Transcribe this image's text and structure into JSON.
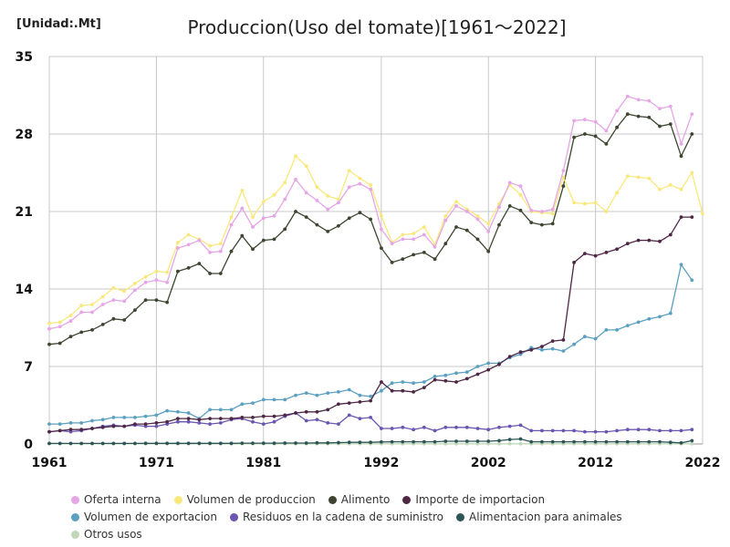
{
  "chart_data": {
    "type": "line",
    "title": "Produccion(Uso del tomate)[1961〜2022]",
    "unit_label": "[Unidad:.Mt]",
    "xlim": [
      1961,
      2022
    ],
    "ylim": [
      0,
      35
    ],
    "x_ticks": [
      1961,
      1971,
      1981,
      1992,
      2002,
      2012,
      2022
    ],
    "y_ticks": [
      0,
      7,
      14,
      21,
      28,
      35
    ],
    "x": [
      1961,
      1962,
      1963,
      1964,
      1965,
      1966,
      1967,
      1968,
      1969,
      1970,
      1971,
      1972,
      1973,
      1974,
      1975,
      1976,
      1977,
      1978,
      1979,
      1980,
      1981,
      1982,
      1983,
      1984,
      1985,
      1986,
      1987,
      1988,
      1989,
      1990,
      1991,
      1992,
      1993,
      1994,
      1995,
      1996,
      1997,
      1998,
      1999,
      2000,
      2001,
      2002,
      2003,
      2004,
      2005,
      2006,
      2007,
      2008,
      2009,
      2010,
      2011,
      2012,
      2013,
      2014,
      2015,
      2016,
      2017,
      2018,
      2019,
      2020,
      2021,
      2022
    ],
    "series": [
      {
        "name": "Oferta interna",
        "color": "#e6a6e6",
        "values": [
          10.4,
          10.6,
          11.1,
          11.9,
          11.9,
          12.6,
          13.0,
          12.9,
          13.9,
          14.6,
          14.8,
          14.6,
          17.7,
          18.0,
          18.4,
          17.3,
          17.4,
          19.8,
          21.3,
          19.6,
          20.4,
          20.6,
          22.1,
          23.9,
          22.7,
          22.0,
          21.2,
          21.8,
          23.2,
          23.5,
          23.0,
          19.4,
          18.1,
          18.5,
          18.5,
          18.9,
          17.8,
          20.2,
          21.5,
          21.0,
          20.3,
          19.2,
          21.4,
          23.6,
          23.3,
          21.1,
          21.0,
          21.2,
          24.7,
          29.2,
          29.3,
          29.1,
          28.3,
          30.1,
          31.4,
          31.1,
          31.0,
          30.3,
          30.5,
          27.1,
          29.8,
          null
        ]
      },
      {
        "name": "Volumen de produccion",
        "color": "#f8e87c",
        "values": [
          10.9,
          11.0,
          11.6,
          12.5,
          12.6,
          13.3,
          14.1,
          13.8,
          14.5,
          15.1,
          15.6,
          15.5,
          18.2,
          18.9,
          18.5,
          17.9,
          18.1,
          20.5,
          22.9,
          20.5,
          21.9,
          22.5,
          23.6,
          26.0,
          25.1,
          23.2,
          22.4,
          22.1,
          24.7,
          24.0,
          23.4,
          20.6,
          18.2,
          18.9,
          19.0,
          19.6,
          18.0,
          20.6,
          21.9,
          21.2,
          20.6,
          19.9,
          21.7,
          23.4,
          22.5,
          21.0,
          20.9,
          20.8,
          24.1,
          21.8,
          21.7,
          21.8,
          21.0,
          22.7,
          24.2,
          24.1,
          24.0,
          23.0,
          23.4,
          23.0,
          24.5,
          20.8
        ]
      },
      {
        "name": "Alimento",
        "color": "#3d4530",
        "values": [
          9.0,
          9.1,
          9.7,
          10.1,
          10.3,
          10.8,
          11.3,
          11.2,
          12.1,
          13.0,
          13.0,
          12.8,
          15.6,
          15.9,
          16.3,
          15.4,
          15.4,
          17.4,
          18.8,
          17.6,
          18.4,
          18.5,
          19.4,
          21.0,
          20.5,
          19.8,
          19.2,
          19.7,
          20.4,
          20.9,
          20.3,
          17.7,
          16.4,
          16.7,
          17.1,
          17.3,
          16.7,
          18.1,
          19.6,
          19.3,
          18.5,
          17.4,
          19.8,
          21.5,
          21.1,
          20.0,
          19.8,
          19.9,
          23.3,
          27.7,
          28.0,
          27.8,
          27.1,
          28.6,
          29.8,
          29.6,
          29.5,
          28.7,
          28.9,
          26.0,
          28.0,
          null
        ]
      },
      {
        "name": "Importe de importacion",
        "color": "#4e2745",
        "values": [
          1.1,
          1.2,
          1.3,
          1.3,
          1.4,
          1.5,
          1.6,
          1.6,
          1.8,
          1.8,
          1.9,
          2.0,
          2.3,
          2.3,
          2.2,
          2.3,
          2.3,
          2.3,
          2.4,
          2.4,
          2.5,
          2.5,
          2.6,
          2.8,
          2.9,
          2.9,
          3.1,
          3.6,
          3.7,
          3.8,
          3.9,
          5.6,
          4.8,
          4.8,
          4.7,
          5.1,
          5.8,
          5.7,
          5.6,
          5.9,
          6.3,
          6.7,
          7.2,
          7.9,
          8.3,
          8.5,
          8.8,
          9.3,
          9.4,
          16.4,
          17.2,
          17.0,
          17.3,
          17.6,
          18.1,
          18.4,
          18.4,
          18.3,
          18.9,
          20.5,
          20.5,
          null
        ]
      },
      {
        "name": "Volumen de exportacion",
        "color": "#5ba0c0",
        "values": [
          1.8,
          1.8,
          1.9,
          1.9,
          2.1,
          2.2,
          2.4,
          2.4,
          2.4,
          2.5,
          2.6,
          3.0,
          2.9,
          2.8,
          2.3,
          3.1,
          3.1,
          3.1,
          3.6,
          3.7,
          4.0,
          4.0,
          4.0,
          4.4,
          4.6,
          4.4,
          4.6,
          4.7,
          4.9,
          4.4,
          4.3,
          4.8,
          5.5,
          5.6,
          5.5,
          5.6,
          6.1,
          6.2,
          6.4,
          6.5,
          7.0,
          7.3,
          7.3,
          7.8,
          8.1,
          8.7,
          8.5,
          8.6,
          8.4,
          9.0,
          9.7,
          9.5,
          10.3,
          10.3,
          10.7,
          11.0,
          11.3,
          11.5,
          11.8,
          16.2,
          14.8,
          null
        ]
      },
      {
        "name": "Residuos en la cadena de suministro",
        "color": "#6a55b0",
        "values": [
          1.1,
          1.2,
          1.1,
          1.2,
          1.4,
          1.6,
          1.7,
          1.6,
          1.7,
          1.6,
          1.6,
          1.8,
          2.0,
          2.0,
          1.9,
          1.8,
          1.9,
          2.2,
          2.3,
          2.0,
          1.8,
          2.0,
          2.5,
          2.8,
          2.1,
          2.2,
          1.9,
          1.8,
          2.6,
          2.3,
          2.4,
          1.4,
          1.4,
          1.5,
          1.3,
          1.5,
          1.2,
          1.5,
          1.5,
          1.5,
          1.4,
          1.3,
          1.5,
          1.6,
          1.7,
          1.2,
          1.2,
          1.2,
          1.2,
          1.2,
          1.1,
          1.1,
          1.1,
          1.2,
          1.3,
          1.3,
          1.3,
          1.2,
          1.2,
          1.2,
          1.3,
          null
        ]
      },
      {
        "name": "Alimentacion para animales",
        "color": "#2e5555",
        "values": [
          0.05,
          0.05,
          0.05,
          0.05,
          0.05,
          0.05,
          0.05,
          0.05,
          0.05,
          0.06,
          0.06,
          0.06,
          0.06,
          0.06,
          0.06,
          0.06,
          0.06,
          0.06,
          0.07,
          0.07,
          0.07,
          0.07,
          0.08,
          0.08,
          0.08,
          0.1,
          0.1,
          0.12,
          0.15,
          0.15,
          0.15,
          0.18,
          0.2,
          0.2,
          0.2,
          0.2,
          0.2,
          0.25,
          0.25,
          0.25,
          0.25,
          0.25,
          0.3,
          0.4,
          0.45,
          0.2,
          0.2,
          0.2,
          0.2,
          0.2,
          0.2,
          0.2,
          0.2,
          0.2,
          0.2,
          0.2,
          0.2,
          0.2,
          0.15,
          0.1,
          0.3,
          null
        ]
      },
      {
        "name": "Otros usos",
        "color": "#c0d8b8",
        "values": [
          0.02,
          0.02,
          0.02,
          0.02,
          0.02,
          0.02,
          0.02,
          0.02,
          0.02,
          0.02,
          0.02,
          0.02,
          0.02,
          0.02,
          0.02,
          0.02,
          0.02,
          0.02,
          0.02,
          0.02,
          0.02,
          0.02,
          0.02,
          0.02,
          0.02,
          0.02,
          0.02,
          0.02,
          0.02,
          0.02,
          0.02,
          0.02,
          0.02,
          0.02,
          0.02,
          0.02,
          0.02,
          0.02,
          0.02,
          0.02,
          0.02,
          0.02,
          0.02,
          0.02,
          0.02,
          0.02,
          0.02,
          0.02,
          0.02,
          0.02,
          0.02,
          0.02,
          0.02,
          0.02,
          0.02,
          0.02,
          0.02,
          0.02,
          0.02,
          0.02,
          0.02,
          null
        ]
      }
    ]
  }
}
